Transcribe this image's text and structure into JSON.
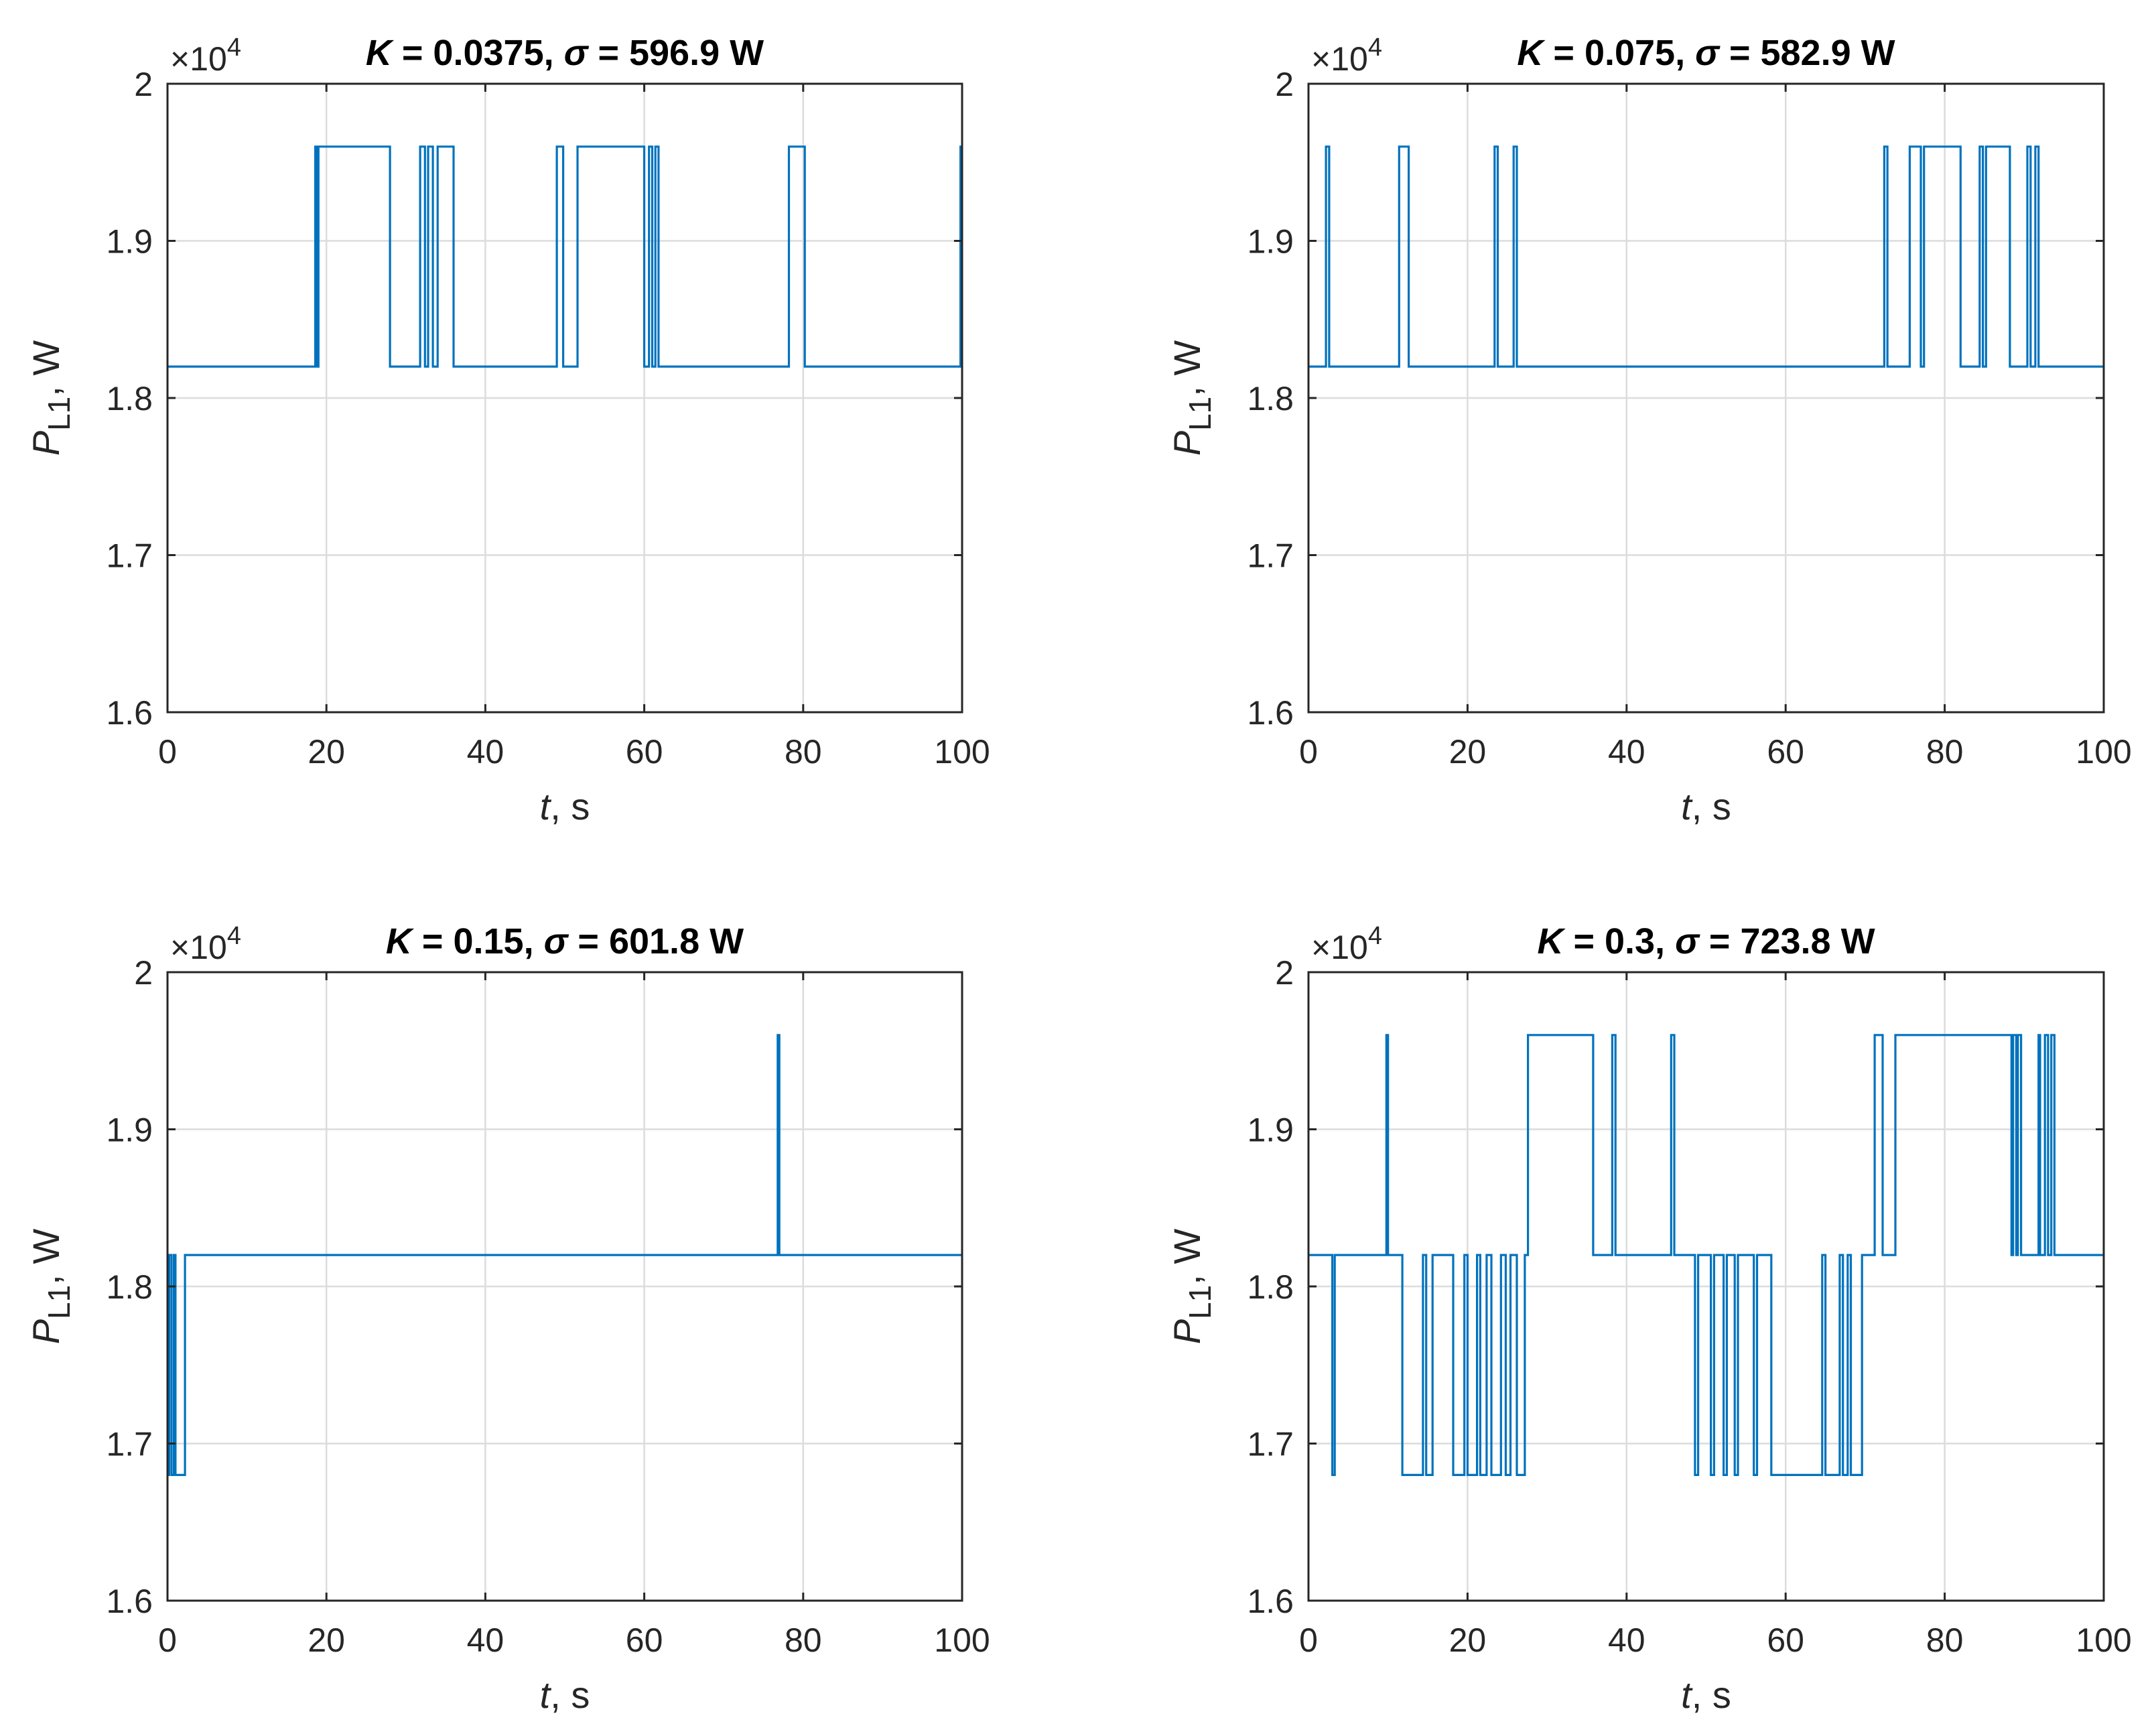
{
  "chart_data": [
    {
      "type": "line",
      "title": {
        "k": "K",
        "k_value": " = 0.0375,  ",
        "sigma": "σ",
        "sigma_value": " = 596.9 W"
      },
      "xlabel": {
        "var": "t",
        "unit": ", s"
      },
      "ylabel": {
        "var": "P",
        "sub": "L1",
        "unit": ", W"
      },
      "exponent": {
        "base": "×10",
        "power": "4"
      },
      "xlim": [
        0,
        100
      ],
      "ylim": [
        1.6,
        2.0
      ],
      "xticks": [
        0,
        20,
        40,
        60,
        80,
        100
      ],
      "xtick_labels": [
        "0",
        "20",
        "40",
        "60",
        "80",
        "100"
      ],
      "yticks": [
        1.6,
        1.7,
        1.8,
        1.9,
        2.0
      ],
      "ytick_labels": [
        "1.6",
        "1.7",
        "1.8",
        "1.9",
        "2"
      ],
      "grid": true,
      "series": [
        {
          "name": "P_L1",
          "color": "#0072BD",
          "x": [
            0,
            18.6,
            18.6,
            18.8,
            18.8,
            19.0,
            19.0,
            28.0,
            28.0,
            31.8,
            31.8,
            32.4,
            32.4,
            32.8,
            32.8,
            33.4,
            33.4,
            34.0,
            34.0,
            36.0,
            36.0,
            36.4,
            36.4,
            49.0,
            49.0,
            49.8,
            49.8,
            51.6,
            51.6,
            60.0,
            60.0,
            60.6,
            60.6,
            61.0,
            61.0,
            61.4,
            61.4,
            61.8,
            61.8,
            78.2,
            78.2,
            80.2,
            80.2,
            99.8,
            99.8,
            100
          ],
          "y": [
            1.82,
            1.82,
            1.96,
            1.96,
            1.82,
            1.82,
            1.96,
            1.96,
            1.82,
            1.82,
            1.96,
            1.96,
            1.82,
            1.82,
            1.96,
            1.96,
            1.82,
            1.82,
            1.96,
            1.96,
            1.82,
            1.82,
            1.82,
            1.82,
            1.96,
            1.96,
            1.82,
            1.82,
            1.96,
            1.96,
            1.82,
            1.82,
            1.96,
            1.96,
            1.82,
            1.82,
            1.96,
            1.96,
            1.82,
            1.82,
            1.96,
            1.96,
            1.82,
            1.82,
            1.96,
            1.96
          ]
        }
      ]
    },
    {
      "type": "line",
      "title": {
        "k": "K",
        "k_value": " = 0.075,  ",
        "sigma": "σ",
        "sigma_value": " = 582.9 W"
      },
      "xlabel": {
        "var": "t",
        "unit": ", s"
      },
      "ylabel": {
        "var": "P",
        "sub": "L1",
        "unit": ", W"
      },
      "exponent": {
        "base": "×10",
        "power": "4"
      },
      "xlim": [
        0,
        100
      ],
      "ylim": [
        1.6,
        2.0
      ],
      "xticks": [
        0,
        20,
        40,
        60,
        80,
        100
      ],
      "xtick_labels": [
        "0",
        "20",
        "40",
        "60",
        "80",
        "100"
      ],
      "yticks": [
        1.6,
        1.7,
        1.8,
        1.9,
        2.0
      ],
      "ytick_labels": [
        "1.6",
        "1.7",
        "1.8",
        "1.9",
        "2"
      ],
      "grid": true,
      "series": [
        {
          "name": "P_L1",
          "color": "#0072BD",
          "x": [
            0,
            2.2,
            2.2,
            2.6,
            2.6,
            11.4,
            11.4,
            12.6,
            12.6,
            23.4,
            23.4,
            23.8,
            23.8,
            25.8,
            25.8,
            26.2,
            26.2,
            72.4,
            72.4,
            72.8,
            72.8,
            75.6,
            75.6,
            77.0,
            77.0,
            77.4,
            77.4,
            82.0,
            82.0,
            84.4,
            84.4,
            84.8,
            84.8,
            85.2,
            85.2,
            88.2,
            88.2,
            90.4,
            90.4,
            90.8,
            90.8,
            91.4,
            91.4,
            91.8,
            91.8,
            100
          ],
          "y": [
            1.82,
            1.82,
            1.96,
            1.96,
            1.82,
            1.82,
            1.96,
            1.96,
            1.82,
            1.82,
            1.96,
            1.96,
            1.82,
            1.82,
            1.96,
            1.96,
            1.82,
            1.82,
            1.96,
            1.96,
            1.82,
            1.82,
            1.96,
            1.96,
            1.82,
            1.82,
            1.96,
            1.96,
            1.82,
            1.82,
            1.96,
            1.96,
            1.82,
            1.82,
            1.96,
            1.96,
            1.82,
            1.82,
            1.96,
            1.96,
            1.82,
            1.82,
            1.96,
            1.96,
            1.82,
            1.82
          ]
        }
      ]
    },
    {
      "type": "line",
      "title": {
        "k": "K",
        "k_value": " = 0.15,  ",
        "sigma": "σ",
        "sigma_value": " = 601.8 W"
      },
      "xlabel": {
        "var": "t",
        "unit": ", s"
      },
      "ylabel": {
        "var": "P",
        "sub": "L1",
        "unit": ", W"
      },
      "exponent": {
        "base": "×10",
        "power": "4"
      },
      "xlim": [
        0,
        100
      ],
      "ylim": [
        1.6,
        2.0
      ],
      "xticks": [
        0,
        20,
        40,
        60,
        80,
        100
      ],
      "xtick_labels": [
        "0",
        "20",
        "40",
        "60",
        "80",
        "100"
      ],
      "yticks": [
        1.6,
        1.7,
        1.8,
        1.9,
        2.0
      ],
      "ytick_labels": [
        "1.6",
        "1.7",
        "1.8",
        "1.9",
        "2"
      ],
      "grid": true,
      "series": [
        {
          "name": "P_L1",
          "color": "#0072BD",
          "x": [
            0,
            0.2,
            0.2,
            0.5,
            0.5,
            0.8,
            0.8,
            1.0,
            1.0,
            2.2,
            2.2,
            76.8,
            76.8,
            77.0,
            77.0,
            100
          ],
          "y": [
            1.68,
            1.68,
            1.82,
            1.82,
            1.68,
            1.68,
            1.82,
            1.82,
            1.68,
            1.68,
            1.82,
            1.82,
            1.96,
            1.96,
            1.82,
            1.82
          ]
        }
      ]
    },
    {
      "type": "line",
      "title": {
        "k": "K",
        "k_value": " = 0.3,  ",
        "sigma": "σ",
        "sigma_value": " = 723.8 W"
      },
      "xlabel": {
        "var": "t",
        "unit": ", s"
      },
      "ylabel": {
        "var": "P",
        "sub": "L1",
        "unit": ", W"
      },
      "exponent": {
        "base": "×10",
        "power": "4"
      },
      "xlim": [
        0,
        100
      ],
      "ylim": [
        1.6,
        2.0
      ],
      "xticks": [
        0,
        20,
        40,
        60,
        80,
        100
      ],
      "xtick_labels": [
        "0",
        "20",
        "40",
        "60",
        "80",
        "100"
      ],
      "yticks": [
        1.6,
        1.7,
        1.8,
        1.9,
        2.0
      ],
      "ytick_labels": [
        "1.6",
        "1.7",
        "1.8",
        "1.9",
        "2"
      ],
      "grid": true,
      "series": [
        {
          "name": "P_L1",
          "color": "#0072BD",
          "x": [
            0,
            3.0,
            3.0,
            3.3,
            3.3,
            9.8,
            9.8,
            10.0,
            10.0,
            11.8,
            11.8,
            14.4,
            14.4,
            14.8,
            14.8,
            15.6,
            15.6,
            18.2,
            18.2,
            19.6,
            19.6,
            20.0,
            20.0,
            21.2,
            21.2,
            21.6,
            21.6,
            22.4,
            22.4,
            23.0,
            23.0,
            24.2,
            24.2,
            24.8,
            24.8,
            25.4,
            25.4,
            26.2,
            26.2,
            27.2,
            27.2,
            27.6,
            27.6,
            35.8,
            35.8,
            38.2,
            38.2,
            38.6,
            38.6,
            45.6,
            45.6,
            46.0,
            46.0,
            48.6,
            48.6,
            49.0,
            49.0,
            50.6,
            50.6,
            51.0,
            51.0,
            52.2,
            52.2,
            52.6,
            52.6,
            53.6,
            53.6,
            54.0,
            54.0,
            56.0,
            56.0,
            56.4,
            56.4,
            58.2,
            58.2,
            64.6,
            64.6,
            65.0,
            65.0,
            66.8,
            66.8,
            67.2,
            67.2,
            67.8,
            67.8,
            68.2,
            68.2,
            69.6,
            69.6,
            71.2,
            71.2,
            72.2,
            72.2,
            73.8,
            73.8,
            88.4,
            88.4,
            88.6,
            88.6,
            89.0,
            89.0,
            89.2,
            89.2,
            89.6,
            89.6,
            91.8,
            91.8,
            92.0,
            92.0,
            92.6,
            92.6,
            93.0,
            93.0,
            93.4,
            93.4,
            93.8,
            93.8,
            100
          ],
          "y": [
            1.82,
            1.82,
            1.68,
            1.68,
            1.82,
            1.82,
            1.96,
            1.96,
            1.82,
            1.82,
            1.68,
            1.68,
            1.82,
            1.82,
            1.68,
            1.68,
            1.82,
            1.82,
            1.68,
            1.68,
            1.82,
            1.82,
            1.68,
            1.68,
            1.82,
            1.82,
            1.68,
            1.68,
            1.82,
            1.82,
            1.68,
            1.68,
            1.82,
            1.82,
            1.68,
            1.68,
            1.82,
            1.82,
            1.68,
            1.68,
            1.82,
            1.82,
            1.96,
            1.96,
            1.82,
            1.82,
            1.96,
            1.96,
            1.82,
            1.82,
            1.96,
            1.96,
            1.82,
            1.82,
            1.68,
            1.68,
            1.82,
            1.82,
            1.68,
            1.68,
            1.82,
            1.82,
            1.68,
            1.68,
            1.82,
            1.82,
            1.68,
            1.68,
            1.82,
            1.82,
            1.68,
            1.68,
            1.82,
            1.82,
            1.68,
            1.68,
            1.82,
            1.82,
            1.68,
            1.68,
            1.82,
            1.82,
            1.68,
            1.68,
            1.82,
            1.82,
            1.68,
            1.68,
            1.82,
            1.82,
            1.96,
            1.96,
            1.82,
            1.82,
            1.96,
            1.96,
            1.82,
            1.82,
            1.96,
            1.96,
            1.82,
            1.82,
            1.96,
            1.96,
            1.82,
            1.82,
            1.96,
            1.96,
            1.82,
            1.82,
            1.96,
            1.96,
            1.82,
            1.82,
            1.96,
            1.96,
            1.82,
            1.82
          ]
        }
      ]
    }
  ]
}
